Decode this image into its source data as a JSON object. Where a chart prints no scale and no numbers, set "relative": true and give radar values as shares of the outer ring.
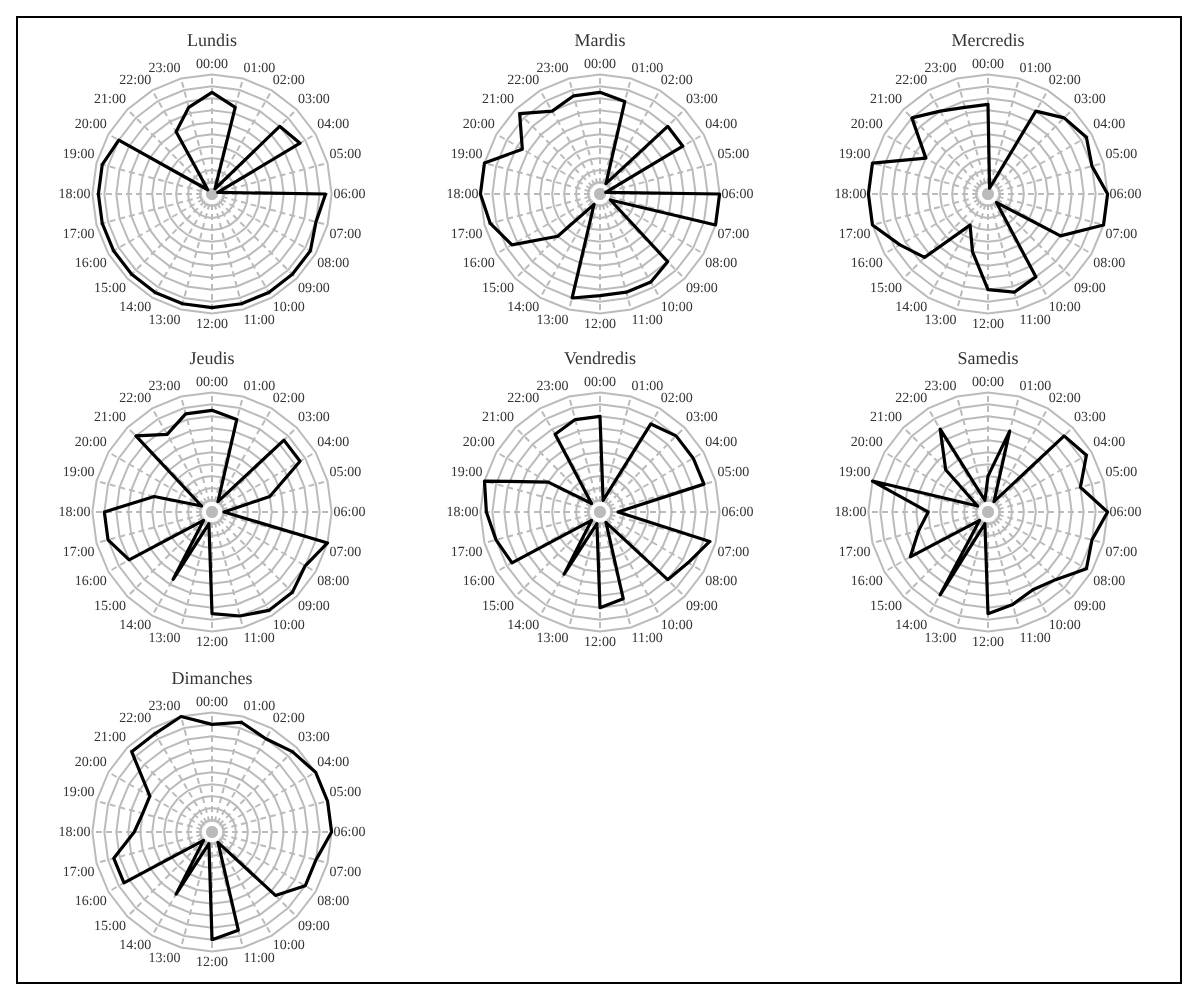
{
  "chart_data": [
    {
      "type": "radar",
      "title": "Lundis",
      "categories": [
        "00:00",
        "01:00",
        "02:00",
        "03:00",
        "04:00",
        "05:00",
        "06:00",
        "07:00",
        "08:00",
        "09:00",
        "10:00",
        "11:00",
        "12:00",
        "13:00",
        "14:00",
        "15:00",
        "16:00",
        "17:00",
        "18:00",
        "19:00",
        "20:00",
        "21:00",
        "22:00",
        "23:00"
      ],
      "relative": true,
      "grid": true,
      "series": [
        {
          "color": "#000000",
          "values": [
            0.85,
            0.75,
            0.05,
            0.8,
            0.85,
            0.05,
            0.95,
            0.9,
            0.95,
            0.95,
            0.95,
            0.95,
            0.95,
            0.95,
            0.95,
            0.95,
            0.95,
            0.95,
            0.95,
            0.95,
            0.9,
            0.05,
            0.6,
            0.75
          ]
        }
      ]
    },
    {
      "type": "radar",
      "title": "Mardis",
      "categories": [
        "00:00",
        "01:00",
        "02:00",
        "03:00",
        "04:00",
        "05:00",
        "06:00",
        "07:00",
        "08:00",
        "09:00",
        "10:00",
        "11:00",
        "12:00",
        "13:00",
        "14:00",
        "15:00",
        "16:00",
        "17:00",
        "18:00",
        "19:00",
        "20:00",
        "21:00",
        "22:00",
        "23:00"
      ],
      "relative": true,
      "grid": true,
      "series": [
        {
          "color": "#000000",
          "values": [
            0.85,
            0.8,
            0.1,
            0.8,
            0.8,
            0.05,
            1.0,
            1.0,
            0.1,
            0.8,
            0.85,
            0.85,
            0.85,
            0.9,
            0.1,
            0.5,
            0.85,
            0.95,
            1.0,
            1.0,
            0.75,
            0.95,
            0.8,
            0.85
          ]
        }
      ]
    },
    {
      "type": "radar",
      "title": "Mercredis",
      "categories": [
        "00:00",
        "01:00",
        "02:00",
        "03:00",
        "04:00",
        "05:00",
        "06:00",
        "07:00",
        "08:00",
        "09:00",
        "10:00",
        "11:00",
        "12:00",
        "13:00",
        "14:00",
        "15:00",
        "16:00",
        "17:00",
        "18:00",
        "19:00",
        "20:00",
        "21:00",
        "22:00",
        "23:00"
      ],
      "relative": true,
      "grid": true,
      "series": [
        {
          "color": "#000000",
          "values": [
            0.75,
            0.05,
            0.8,
            0.9,
            0.95,
            0.9,
            1.0,
            1.0,
            0.7,
            0.1,
            0.8,
            0.85,
            0.8,
            0.5,
            0.3,
            0.75,
            0.85,
            1.0,
            1.0,
            1.0,
            0.6,
            0.9,
            0.8,
            0.75
          ]
        }
      ]
    },
    {
      "type": "radar",
      "title": "Jeudis",
      "categories": [
        "00:00",
        "01:00",
        "02:00",
        "03:00",
        "04:00",
        "05:00",
        "06:00",
        "07:00",
        "08:00",
        "09:00",
        "10:00",
        "11:00",
        "12:00",
        "13:00",
        "14:00",
        "15:00",
        "16:00",
        "17:00",
        "18:00",
        "19:00",
        "20:00",
        "21:00",
        "22:00",
        "23:00"
      ],
      "relative": true,
      "grid": true,
      "series": [
        {
          "color": "#000000",
          "values": [
            0.85,
            0.8,
            0.1,
            0.85,
            0.85,
            0.5,
            0.1,
            1.0,
            0.9,
            0.95,
            0.95,
            0.9,
            0.85,
            0.1,
            0.65,
            0.1,
            0.8,
            0.9,
            0.9,
            0.5,
            0.1,
            0.9,
            0.75,
            0.85
          ]
        }
      ]
    },
    {
      "type": "radar",
      "title": "Vendredis",
      "categories": [
        "00:00",
        "01:00",
        "02:00",
        "03:00",
        "04:00",
        "05:00",
        "06:00",
        "07:00",
        "08:00",
        "09:00",
        "10:00",
        "11:00",
        "12:00",
        "13:00",
        "14:00",
        "15:00",
        "16:00",
        "17:00",
        "18:00",
        "19:00",
        "20:00",
        "21:00",
        "22:00",
        "23:00"
      ],
      "relative": true,
      "grid": true,
      "series": [
        {
          "color": "#000000",
          "values": [
            0.8,
            0.1,
            0.85,
            0.9,
            0.9,
            0.9,
            0.15,
            0.95,
            0.85,
            0.8,
            0.1,
            0.75,
            0.8,
            0.1,
            0.6,
            0.1,
            0.85,
            0.9,
            0.95,
            1.0,
            0.5,
            0.1,
            0.75,
            0.8
          ]
        }
      ]
    },
    {
      "type": "radar",
      "title": "Samedis",
      "categories": [
        "00:00",
        "01:00",
        "02:00",
        "03:00",
        "04:00",
        "05:00",
        "06:00",
        "07:00",
        "08:00",
        "09:00",
        "10:00",
        "11:00",
        "12:00",
        "13:00",
        "14:00",
        "15:00",
        "16:00",
        "17:00",
        "18:00",
        "19:00",
        "20:00",
        "21:00",
        "22:00",
        "23:00"
      ],
      "relative": true,
      "grid": true,
      "series": [
        {
          "color": "#000000",
          "values": [
            0.3,
            0.7,
            0.1,
            0.9,
            0.95,
            0.8,
            1.0,
            0.9,
            0.95,
            0.8,
            0.75,
            0.8,
            0.85,
            0.1,
            0.8,
            0.1,
            0.75,
            0.6,
            0.5,
            1.0,
            0.1,
            0.5,
            0.8,
            0.1
          ]
        }
      ]
    },
    {
      "type": "radar",
      "title": "Dimanches",
      "categories": [
        "00:00",
        "01:00",
        "02:00",
        "03:00",
        "04:00",
        "05:00",
        "06:00",
        "07:00",
        "08:00",
        "09:00",
        "10:00",
        "11:00",
        "12:00",
        "13:00",
        "14:00",
        "15:00",
        "16:00",
        "17:00",
        "18:00",
        "19:00",
        "20:00",
        "21:00",
        "22:00",
        "23:00"
      ],
      "relative": true,
      "grid": true,
      "series": [
        {
          "color": "#000000",
          "values": [
            0.9,
            0.95,
            0.9,
            0.95,
            1.0,
            1.0,
            1.0,
            0.9,
            0.9,
            0.75,
            0.1,
            0.85,
            0.9,
            0.1,
            0.6,
            0.1,
            0.85,
            0.85,
            0.65,
            0.6,
            0.6,
            0.95,
            0.95,
            1.0
          ]
        }
      ]
    }
  ]
}
